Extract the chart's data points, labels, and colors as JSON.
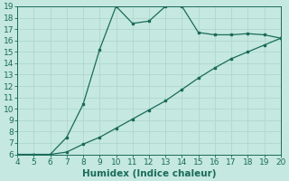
{
  "xlabel": "Humidex (Indice chaleur)",
  "bg_color": "#c5e8e0",
  "line_color": "#1a6b5a",
  "grid_color": "#afd8cf",
  "xlim": [
    4,
    20
  ],
  "ylim": [
    6,
    19
  ],
  "xticks": [
    4,
    5,
    6,
    7,
    8,
    9,
    10,
    11,
    12,
    13,
    14,
    15,
    16,
    17,
    18,
    19,
    20
  ],
  "yticks": [
    6,
    7,
    8,
    9,
    10,
    11,
    12,
    13,
    14,
    15,
    16,
    17,
    18,
    19
  ],
  "curve1_x": [
    4,
    5,
    6,
    7,
    8,
    9,
    10,
    11,
    12,
    13,
    14,
    15,
    16,
    17,
    18,
    19,
    20
  ],
  "curve1_y": [
    6.0,
    6.0,
    6.0,
    7.5,
    10.4,
    15.2,
    19.0,
    17.5,
    17.7,
    19.0,
    19.0,
    16.7,
    16.5,
    16.5,
    16.6,
    16.5,
    16.2
  ],
  "curve2_x": [
    4,
    5,
    6,
    7,
    8,
    9,
    10,
    11,
    12,
    13,
    14,
    15,
    16,
    17,
    18,
    19,
    20
  ],
  "curve2_y": [
    6.0,
    6.0,
    6.0,
    6.2,
    6.9,
    7.5,
    8.3,
    9.1,
    9.9,
    10.7,
    11.7,
    12.7,
    13.6,
    14.4,
    15.0,
    15.6,
    16.2
  ],
  "marker_size": 2.0,
  "linewidth": 0.9,
  "xlabel_fontsize": 7.5,
  "tick_fontsize": 6.5
}
